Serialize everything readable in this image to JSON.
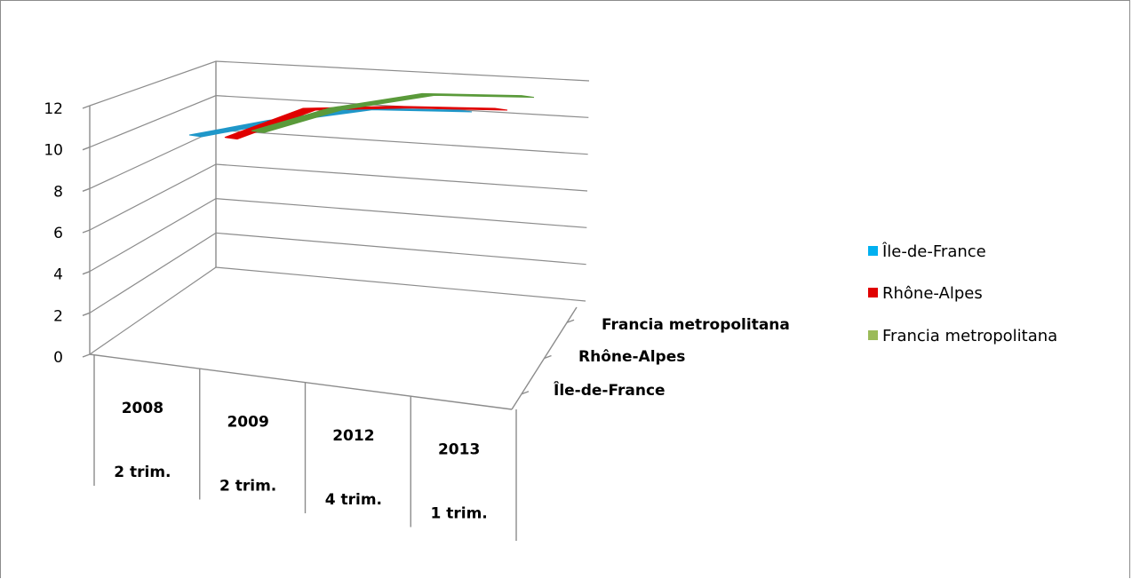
{
  "chart_data": {
    "type": "line",
    "style": "3d",
    "title": "",
    "categories": [
      {
        "year": "2008",
        "period": "2 trim."
      },
      {
        "year": "2009",
        "period": "2 trim."
      },
      {
        "year": "2012",
        "period": "4 trim."
      },
      {
        "year": "2013",
        "period": "1 trim."
      }
    ],
    "series": [
      {
        "name": "Île-de-France",
        "values": [
          6.9,
          7.6,
          8.2,
          8.1
        ],
        "color": "#1f97c9"
      },
      {
        "name": "Rhône-Alpes",
        "values": [
          7.9,
          9.3,
          9.4,
          9.3
        ],
        "color": "#e00000"
      },
      {
        "name": "Francia metropolitana",
        "values": [
          9.5,
          10.6,
          11.3,
          11.2
        ],
        "color": "#5a9a3a"
      }
    ],
    "depth_labels": [
      "Île-de-France",
      "Rhône-Alpes",
      "Francia metropolitana"
    ],
    "yticks": [
      "0",
      "2",
      "4",
      "6",
      "8",
      "10",
      "12"
    ],
    "ylim": [
      0,
      12
    ],
    "grid": true,
    "legend": {
      "position": "right",
      "items": [
        {
          "label": "Île-de-France",
          "color": "#00b0f0"
        },
        {
          "label": "Rhône-Alpes",
          "color": "#e00000"
        },
        {
          "label": "Francia metropolitana",
          "color": "#9bbb59"
        }
      ]
    }
  }
}
